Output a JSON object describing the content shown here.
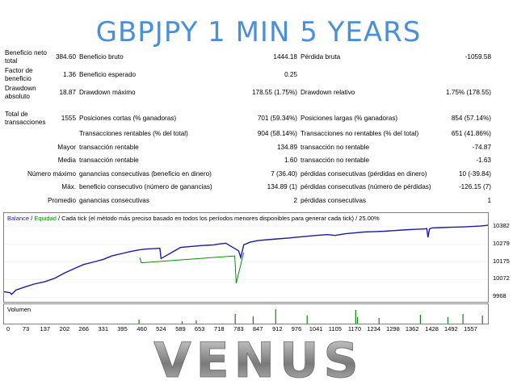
{
  "header": {
    "title": "GBPJPY 1 MIN 5 YEARS"
  },
  "stats": {
    "net_profit_label": "Beneficio neto total",
    "net_profit_value": "384.60",
    "gross_profit_label": "Beneficio bruto",
    "gross_profit_value": "1444.18",
    "gross_loss_label": "Pérdida bruta",
    "gross_loss_value": "-1059.58",
    "profit_factor_label": "Factor de beneficio",
    "profit_factor_value": "1.36",
    "expected_payoff_label": "Beneficio esperado",
    "expected_payoff_value": "0.25",
    "drawdown_abs_label": "Drawdown absoluto",
    "drawdown_abs_value": "18.87",
    "drawdown_max_label": "Drawdown máximo",
    "drawdown_max_value": "178.55 (1.75%)",
    "drawdown_rel_label": "Drawdown relativo",
    "drawdown_rel_value": "1.75% (178.55)",
    "total_trades_label": "Total de transacciones",
    "total_trades_value": "1555",
    "short_label": "Posiciones cortas (% ganadoras)",
    "short_value": "701 (59.34%)",
    "long_label": "Posiciones largas (% ganadoras)",
    "long_value": "854 (57.14%)",
    "profit_trades_label": "Transacciones rentables (% del total)",
    "profit_trades_value": "904 (58.14%)",
    "loss_trades_label": "Transacciones no rentables (% del total)",
    "loss_trades_value": "651 (41.86%)",
    "largest_label": "Mayor",
    "largest_profit_label": "transacción rentable",
    "largest_profit_value": "134.89",
    "largest_loss_label": "transacción no rentable",
    "largest_loss_value": "-74.87",
    "average_label": "Media",
    "average_profit_label": "transacción rentable",
    "average_profit_value": "1.60",
    "average_loss_label": "transacción no rentable",
    "average_loss_value": "-1.63",
    "max_label": "Número máximo",
    "max_consec_wins_label": "ganancias consecutivas (beneficio en dinero)",
    "max_consec_wins_value": "7 (36.40)",
    "max_consec_losses_label": "pérdidas consecutivas (pérdidas en dinero)",
    "max_consec_losses_value": "10 (-39.84)",
    "maximal_label": "Máx.",
    "maximal_consec_profit_label": "beneficio consecutivo (número de ganancias)",
    "maximal_consec_profit_value": "134.89 (1)",
    "maximal_consec_loss_label": "pérdidas consecutivas (número de pérdidas)",
    "maximal_consec_loss_value": "-126.15 (7)",
    "avg_label": "Promedio",
    "avg_consec_wins_label": "ganancias consecutivas",
    "avg_consec_wins_value": "2",
    "avg_consec_losses_label": "pérdidas consecutivas",
    "avg_consec_losses_value": "1"
  },
  "chart_header": {
    "balance": "Balance",
    "sep1": " / ",
    "equity": "Equidad",
    "rest": " / Cada tick (el método más preciso basado en todos los períodos menores disponibles para generar cada tick)  /  25.00%"
  },
  "volume_label": "Volumen",
  "chart_data": {
    "type": "line",
    "series": [
      {
        "name": "Balance",
        "x": [
          0,
          20,
          25,
          40,
          73,
          100,
          137,
          170,
          202,
          240,
          266,
          300,
          331,
          360,
          395,
          420,
          450,
          470,
          520,
          524,
          589,
          653,
          700,
          718,
          740,
          783,
          790,
          800,
          820,
          847,
          880,
          912,
          950,
          976,
          1010,
          1041,
          1080,
          1105,
          1140,
          1170,
          1200,
          1234,
          1270,
          1298,
          1330,
          1362,
          1400,
          1411,
          1415,
          1420,
          1428,
          1460,
          1492,
          1530,
          1557,
          1590,
          1615
        ],
        "y": [
          10000,
          9995,
          9985,
          10010,
          10030,
          10045,
          10060,
          10080,
          10110,
          10140,
          10160,
          10175,
          10190,
          10210,
          10225,
          10235,
          10245,
          10250,
          10255,
          10195,
          10260,
          10270,
          10275,
          10280,
          10285,
          10240,
          10200,
          10275,
          10290,
          10300,
          10305,
          10310,
          10315,
          10320,
          10325,
          10330,
          10335,
          10330,
          10340,
          10345,
          10350,
          10352,
          10355,
          10358,
          10362,
          10365,
          10368,
          10370,
          10320,
          10368,
          10374,
          10376,
          10378,
          10380,
          10382,
          10385,
          10390
        ]
      },
      {
        "name": "Equidad",
        "x": [
          453,
          458,
          770,
          775,
          800
        ],
        "y": [
          10200,
          10170,
          10210,
          10050,
          10230
        ]
      }
    ],
    "x_ticks": [
      "0",
      "73",
      "137",
      "202",
      "266",
      "331",
      "395",
      "460",
      "524",
      "589",
      "653",
      "718",
      "783",
      "847",
      "912",
      "976",
      "1041",
      "1105",
      "1170",
      "1234",
      "1298",
      "1362",
      "1428",
      "1492",
      "1557"
    ],
    "y_ticks": [
      "10382",
      "10279",
      "10175",
      "10072",
      "9968"
    ],
    "xlim": [
      0,
      1615
    ],
    "ylim": [
      9960,
      10395
    ],
    "colors": {
      "balance": "#1a1aa6",
      "equity": "#0a8a0a",
      "volume": "#0a8a0a"
    },
    "volume": {
      "x": [
        449,
        593,
        640,
        770,
        830,
        905,
        1010,
        1172,
        1178,
        1250,
        1388,
        1480,
        1530,
        1595
      ],
      "h": [
        0.25,
        0.15,
        0.2,
        0.6,
        0.45,
        0.9,
        0.5,
        0.85,
        0.4,
        0.35,
        0.55,
        0.4,
        0.6,
        0.5
      ]
    }
  },
  "brand": {
    "name": "VENUS"
  }
}
